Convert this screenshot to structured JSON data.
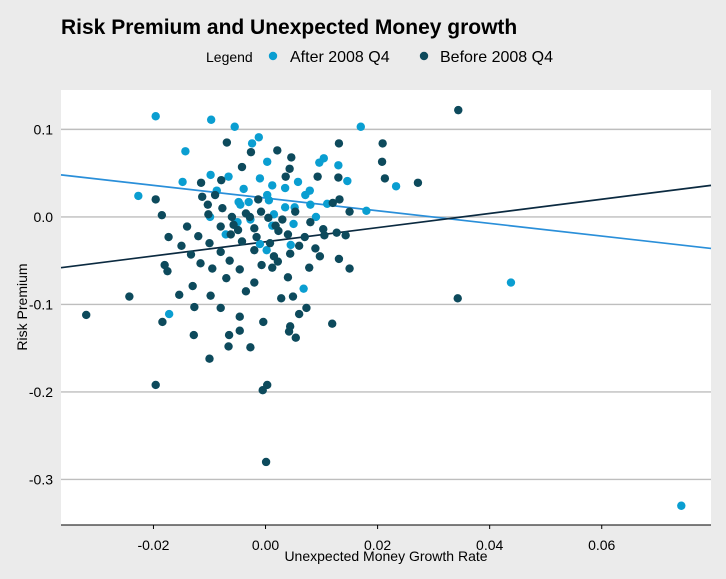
{
  "chart_data": {
    "type": "scatter",
    "title": "Risk Premium and Unexpected Money growth",
    "xlabel": "Unexpected Money Growth Rate",
    "ylabel": "Risk Premium",
    "legend": {
      "title": "Legend",
      "placement": "top",
      "entries": [
        "After 2008 Q4",
        "Before 2008 Q4"
      ]
    },
    "xlim": [
      -0.0365,
      0.0795
    ],
    "ylim": [
      -0.352,
      0.145
    ],
    "xticks": [
      -0.02,
      0.0,
      0.02,
      0.04,
      0.06
    ],
    "xtick_labels": [
      "-0.02",
      "0.00",
      "0.02",
      "0.04",
      "0.06"
    ],
    "yticks": [
      0.1,
      0.0,
      -0.1,
      -0.2,
      -0.3
    ],
    "ytick_labels": [
      "0.1",
      "0.0",
      "-0.1",
      "-0.2",
      "-0.3"
    ],
    "grid": "horizontal",
    "colors": {
      "after": "#0a9ed1",
      "before": "#0d4a5c",
      "after_line": "#2a8fd9",
      "before_line": "#0b2a40",
      "panel": "#ffffff",
      "page": "#ebebeb",
      "grid": "#bebebe"
    },
    "series": [
      {
        "name": "After 2008 Q4",
        "color": "#0a9ed1",
        "points": [
          [
            -0.0196,
            0.115
          ],
          [
            -0.0097,
            0.111
          ],
          [
            -0.0055,
            0.103
          ],
          [
            -0.0012,
            0.091
          ],
          [
            0.017,
            0.103
          ],
          [
            -0.0143,
            0.075
          ],
          [
            -0.0024,
            0.084
          ],
          [
            0.0003,
            0.063
          ],
          [
            0.0104,
            0.067
          ],
          [
            0.013,
            0.059
          ],
          [
            -0.0098,
            0.048
          ],
          [
            -0.0066,
            0.046
          ],
          [
            -0.001,
            0.044
          ],
          [
            0.0035,
            0.033
          ],
          [
            0.0058,
            0.04
          ],
          [
            0.0079,
            0.03
          ],
          [
            0.0146,
            0.041
          ],
          [
            0.0096,
            0.062
          ],
          [
            -0.0148,
            0.04
          ],
          [
            -0.0039,
            0.032
          ],
          [
            -0.0087,
            0.03
          ],
          [
            0.0006,
            0.019
          ],
          [
            0.0071,
            0.025
          ],
          [
            0.0233,
            0.035
          ],
          [
            -0.0227,
            0.024
          ],
          [
            -0.0045,
            0.014
          ],
          [
            -0.003,
            0.017
          ],
          [
            0.0052,
            0.011
          ],
          [
            0.008,
            0.014
          ],
          [
            0.018,
            0.007
          ],
          [
            -0.0099,
            0.0
          ],
          [
            -0.0027,
            -0.003
          ],
          [
            0.0012,
            -0.01
          ],
          [
            0.005,
            -0.008
          ],
          [
            -0.0071,
            -0.02
          ],
          [
            -0.001,
            -0.031
          ],
          [
            0.0045,
            -0.032
          ],
          [
            0.0068,
            -0.082
          ],
          [
            -0.0172,
            -0.111
          ],
          [
            0.0438,
            -0.075
          ],
          [
            0.0742,
            -0.33
          ],
          [
            0.0035,
            0.011
          ],
          [
            0.0015,
            0.003
          ],
          [
            -0.005,
            -0.006
          ],
          [
            0.0002,
            -0.038
          ],
          [
            0.009,
            0.0
          ],
          [
            0.0012,
            0.036
          ],
          [
            0.0003,
            0.025
          ],
          [
            0.011,
            0.015
          ],
          [
            -0.0048,
            0.017
          ]
        ]
      },
      {
        "name": "Before 2008 Q4",
        "color": "#0d4a5c",
        "points": [
          [
            0.0344,
            0.122
          ],
          [
            0.0209,
            0.084
          ],
          [
            0.0131,
            0.084
          ],
          [
            0.0046,
            0.068
          ],
          [
            0.0021,
            0.076
          ],
          [
            0.0208,
            0.063
          ],
          [
            -0.0069,
            0.085
          ],
          [
            -0.0026,
            0.074
          ],
          [
            0.0043,
            0.055
          ],
          [
            0.0036,
            0.046
          ],
          [
            0.0213,
            0.044
          ],
          [
            0.0272,
            0.039
          ],
          [
            -0.0042,
            0.057
          ],
          [
            -0.0115,
            0.039
          ],
          [
            -0.0079,
            0.042
          ],
          [
            0.0093,
            0.046
          ],
          [
            0.013,
            0.045
          ],
          [
            -0.009,
            0.025
          ],
          [
            -0.0013,
            0.02
          ],
          [
            -0.0113,
            0.023
          ],
          [
            0.0132,
            0.02
          ],
          [
            -0.0196,
            0.02
          ],
          [
            -0.0185,
            0.002
          ],
          [
            -0.0103,
            0.014
          ],
          [
            -0.0077,
            0.01
          ],
          [
            -0.0008,
            0.006
          ],
          [
            0.0053,
            0.006
          ],
          [
            0.012,
            0.016
          ],
          [
            0.015,
            0.006
          ],
          [
            -0.0102,
            0.003
          ],
          [
            -0.006,
            0.0
          ],
          [
            -0.0035,
            0.004
          ],
          [
            0.0005,
            -0.001
          ],
          [
            0.003,
            -0.003
          ],
          [
            0.008,
            -0.006
          ],
          [
            -0.014,
            -0.011
          ],
          [
            -0.008,
            -0.011
          ],
          [
            -0.0049,
            -0.015
          ],
          [
            -0.002,
            -0.013
          ],
          [
            0.0023,
            -0.016
          ],
          [
            0.0103,
            -0.014
          ],
          [
            0.0127,
            -0.018
          ],
          [
            -0.0173,
            -0.023
          ],
          [
            -0.012,
            -0.022
          ],
          [
            -0.0062,
            -0.02
          ],
          [
            -0.0016,
            -0.023
          ],
          [
            0.004,
            -0.02
          ],
          [
            0.007,
            -0.023
          ],
          [
            0.0105,
            -0.021
          ],
          [
            0.0143,
            -0.021
          ],
          [
            -0.015,
            -0.033
          ],
          [
            -0.01,
            -0.03
          ],
          [
            -0.0042,
            -0.028
          ],
          [
            0.0008,
            -0.03
          ],
          [
            0.006,
            -0.033
          ],
          [
            0.0089,
            -0.036
          ],
          [
            -0.0133,
            -0.043
          ],
          [
            -0.008,
            -0.04
          ],
          [
            -0.002,
            -0.038
          ],
          [
            0.0044,
            -0.042
          ],
          [
            0.0097,
            -0.045
          ],
          [
            -0.0116,
            -0.053
          ],
          [
            -0.0064,
            -0.05
          ],
          [
            -0.0007,
            -0.055
          ],
          [
            0.0022,
            -0.051
          ],
          [
            -0.018,
            -0.055
          ],
          [
            -0.0095,
            -0.059
          ],
          [
            -0.0046,
            -0.06
          ],
          [
            0.0012,
            -0.058
          ],
          [
            0.0078,
            -0.058
          ],
          [
            0.015,
            -0.059
          ],
          [
            0.0131,
            -0.048
          ],
          [
            -0.0175,
            -0.062
          ],
          [
            -0.013,
            -0.079
          ],
          [
            -0.007,
            -0.07
          ],
          [
            -0.002,
            -0.075
          ],
          [
            0.004,
            -0.069
          ],
          [
            -0.0154,
            -0.089
          ],
          [
            -0.0098,
            -0.09
          ],
          [
            -0.0035,
            -0.085
          ],
          [
            0.0028,
            -0.093
          ],
          [
            0.0049,
            -0.091
          ],
          [
            -0.0243,
            -0.091
          ],
          [
            0.0343,
            -0.093
          ],
          [
            -0.0127,
            -0.103
          ],
          [
            -0.008,
            -0.104
          ],
          [
            -0.0046,
            -0.114
          ],
          [
            0.0073,
            -0.104
          ],
          [
            0.006,
            -0.111
          ],
          [
            -0.032,
            -0.112
          ],
          [
            -0.0004,
            -0.12
          ],
          [
            0.0119,
            -0.122
          ],
          [
            -0.0184,
            -0.12
          ],
          [
            -0.0046,
            -0.13
          ],
          [
            0.0044,
            -0.125
          ],
          [
            -0.0065,
            -0.135
          ],
          [
            0.0042,
            -0.131
          ],
          [
            -0.0128,
            -0.135
          ],
          [
            0.0054,
            -0.138
          ],
          [
            -0.0066,
            -0.148
          ],
          [
            -0.0027,
            -0.149
          ],
          [
            -0.01,
            -0.162
          ],
          [
            -0.0196,
            -0.192
          ],
          [
            0.0003,
            -0.192
          ],
          [
            -0.0005,
            -0.198
          ],
          [
            0.0001,
            -0.28
          ],
          [
            0.0018,
            -0.01
          ],
          [
            -0.0028,
            0.0
          ],
          [
            0.0015,
            -0.045
          ],
          [
            -0.0057,
            -0.009
          ]
        ]
      }
    ],
    "fit_lines": [
      {
        "series": "After 2008 Q4",
        "x": [
          -0.0365,
          0.0795
        ],
        "y": [
          0.048,
          -0.036
        ],
        "color": "#2a8fd9"
      },
      {
        "series": "Before 2008 Q4",
        "x": [
          -0.0365,
          0.0795
        ],
        "y": [
          -0.058,
          0.036
        ],
        "color": "#0b2a40"
      }
    ]
  }
}
